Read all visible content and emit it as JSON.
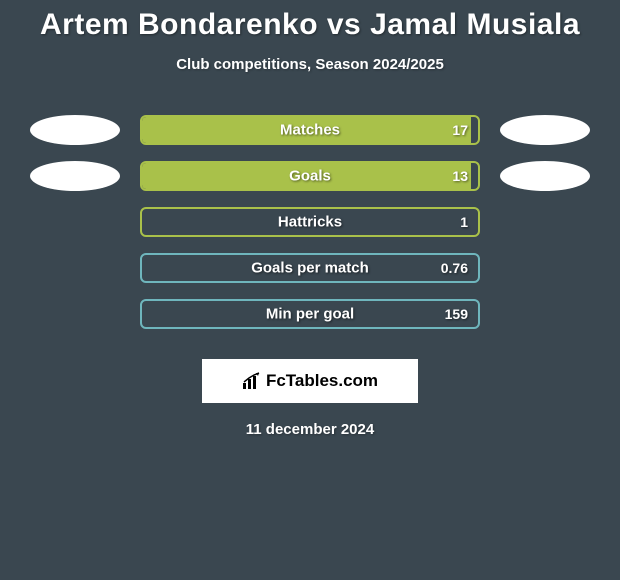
{
  "title": "Artem Bondarenko vs Jamal Musiala",
  "subtitle": "Club competitions, Season 2024/2025",
  "date": "11 december 2024",
  "logo_text": "FcTables.com",
  "background_color": "#3a4750",
  "title_color": "#ffffff",
  "title_fontsize": 30,
  "subtitle_fontsize": 15,
  "label_fontsize": 15,
  "value_fontsize": 14,
  "text_shadow": "1px 1px 2px rgba(0,0,0,0.5)",
  "bars": [
    {
      "label": "Matches",
      "value_text": "17",
      "fill_percent": 98,
      "border_color": "#a9c14a",
      "fill_color": "#a9c14a",
      "show_left_oval": true,
      "show_right_oval": true
    },
    {
      "label": "Goals",
      "value_text": "13",
      "fill_percent": 98,
      "border_color": "#a9c14a",
      "fill_color": "#a9c14a",
      "show_left_oval": true,
      "show_right_oval": true
    },
    {
      "label": "Hattricks",
      "value_text": "1",
      "fill_percent": 0,
      "border_color": "#a9c14a",
      "fill_color": "#a9c14a",
      "show_left_oval": false,
      "show_right_oval": false
    },
    {
      "label": "Goals per match",
      "value_text": "0.76",
      "fill_percent": 0,
      "border_color": "#6fb6bd",
      "fill_color": "#6fb6bd",
      "show_left_oval": false,
      "show_right_oval": false
    },
    {
      "label": "Min per goal",
      "value_text": "159",
      "fill_percent": 0,
      "border_color": "#6fb6bd",
      "fill_color": "#6fb6bd",
      "show_left_oval": false,
      "show_right_oval": false
    }
  ]
}
